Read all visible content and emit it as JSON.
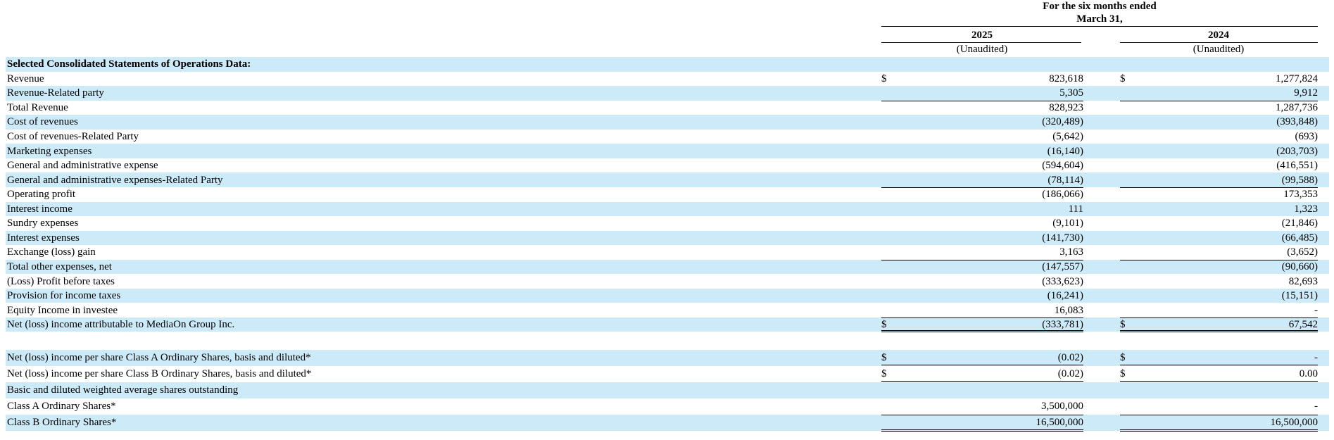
{
  "header": {
    "period": "For the six months ended",
    "period_date": "March 31,",
    "columns": [
      {
        "year": "2025",
        "note": "(Unaudited)"
      },
      {
        "year": "2024",
        "note": "(Unaudited)"
      }
    ]
  },
  "table": {
    "rows": [
      {
        "label": "Selected Consolidated Statements of Operations Data:"
      },
      {
        "label": "Revenue",
        "c1": "$",
        "v1": "823,618",
        "c2": "$",
        "v2": "1,277,824"
      },
      {
        "label": "Revenue-Related party",
        "v1": "5,305",
        "v2": "9,912"
      },
      {
        "label": "Total Revenue",
        "v1": "828,923",
        "v2": "1,287,736"
      },
      {
        "label": "Cost of revenues",
        "v1": "(320,489)",
        "v2": "(393,848)"
      },
      {
        "label": "Cost of revenues-Related Party",
        "v1": "(5,642)",
        "v2": "(693)"
      },
      {
        "label": "Marketing expenses",
        "v1": "(16,140)",
        "v2": "(203,703)"
      },
      {
        "label": "General and administrative expense",
        "v1": "(594,604)",
        "v2": "(416,551)"
      },
      {
        "label": "General and administrative expenses-Related Party",
        "v1": "(78,114)",
        "v2": "(99,588)"
      },
      {
        "label": "Operating profit",
        "v1": "(186,066)",
        "v2": "173,353"
      },
      {
        "label": "Interest income",
        "v1": "111",
        "v2": "1,323"
      },
      {
        "label": "Sundry expenses",
        "v1": "(9,101)",
        "v2": "(21,846)"
      },
      {
        "label": "Interest expenses",
        "v1": "(141,730)",
        "v2": "(66,485)"
      },
      {
        "label": "Exchange (loss) gain",
        "v1": "3,163",
        "v2": "(3,652)"
      },
      {
        "label": "Total other expenses, net",
        "v1": "(147,557)",
        "v2": "(90,660)"
      },
      {
        "label": "(Loss) Profit before taxes",
        "v1": "(333,623)",
        "v2": "82,693"
      },
      {
        "label": "Provision for income taxes",
        "v1": "(16,241)",
        "v2": "(15,151)"
      },
      {
        "label": "Equity Income in investee",
        "v1": "16,083",
        "v2": "-"
      },
      {
        "label": "Net (loss) income attributable to MediaOn Group Inc.",
        "c1": "$",
        "v1": "(333,781)",
        "c2": "$",
        "v2": "67,542"
      },
      {
        "label": "Net (loss) income per share Class A Ordinary Shares, basis and diluted*",
        "c1": "$",
        "v1": "(0.02)",
        "c2": "$",
        "v2": "-"
      },
      {
        "label": "Net (loss) income per share Class B Ordinary Shares, basis and diluted*",
        "c1": "$",
        "v1": "(0.02)",
        "c2": "$",
        "v2": "0.00"
      },
      {
        "label": "Basic and diluted weighted average shares outstanding"
      },
      {
        "label": "Class A Ordinary Shares*",
        "v1": "3,500,000",
        "v2": "-"
      },
      {
        "label": "Class B Ordinary Shares*",
        "v1": "16,500,000",
        "v2": "16,500,000"
      }
    ]
  }
}
